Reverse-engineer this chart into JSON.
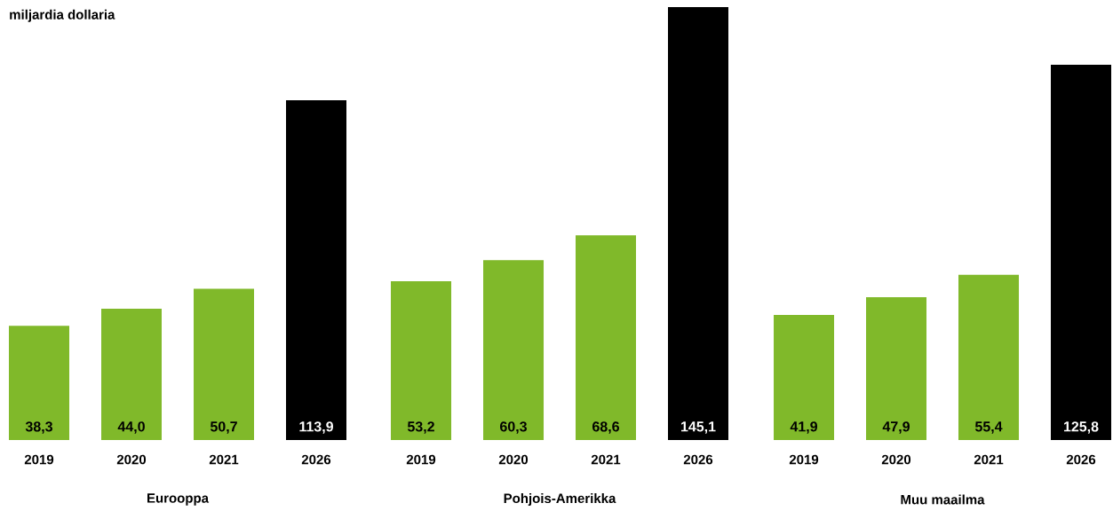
{
  "chart_data": [
    {
      "type": "bar",
      "title": "Eurooppa",
      "ylabel": "miljardia dollaria",
      "categories": [
        "2019",
        "2020",
        "2021",
        "2026"
      ],
      "values": [
        38.3,
        44.0,
        50.7,
        113.9
      ],
      "value_labels": [
        "38,3",
        "44,0",
        "50,7",
        "113,9"
      ],
      "colors": [
        "#80b92a",
        "#80b92a",
        "#80b92a",
        "#000000"
      ],
      "tick_labels": "x"
    },
    {
      "type": "bar",
      "title": "Pohjois-Amerikka",
      "categories": [
        "2019",
        "2020",
        "2021",
        "2026"
      ],
      "values": [
        53.2,
        60.3,
        68.6,
        145.1
      ],
      "value_labels": [
        "53,2",
        "60,3",
        "68,6",
        "145,1"
      ],
      "colors": [
        "#80b92a",
        "#80b92a",
        "#80b92a",
        "#000000"
      ],
      "tick_labels": "x"
    },
    {
      "type": "bar",
      "title": "Muu maailma",
      "categories": [
        "2019",
        "2020",
        "2021",
        "2026"
      ],
      "values": [
        41.9,
        47.9,
        55.4,
        125.8
      ],
      "value_labels": [
        "41,9",
        "47,9",
        "55,4",
        "125,8"
      ],
      "colors": [
        "#80b92a",
        "#80b92a",
        "#80b92a",
        "#000000"
      ],
      "tick_labels": "x"
    }
  ]
}
